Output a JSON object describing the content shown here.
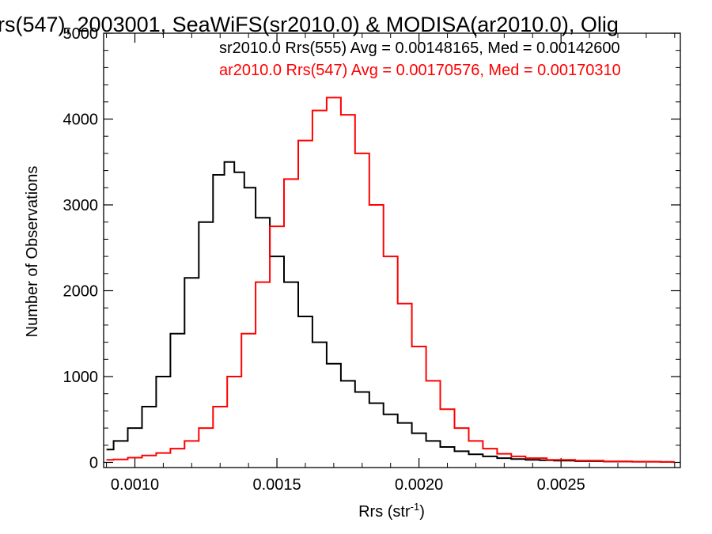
{
  "chart_data": {
    "type": "line",
    "title": "rs(547), 2003001, SeaWiFS(sr2010.0) & MODISA(ar2010.0), Olig",
    "xlabel": "Rrs (str",
    "xlabel_sup": "-1",
    "xlabel_close": ")",
    "ylabel": "Number of Observations",
    "xlim": [
      0.00089,
      0.00292
    ],
    "ylim": [
      -60,
      5000
    ],
    "xticks": [
      0.001,
      0.0015,
      0.002,
      0.0025
    ],
    "xtick_labels": [
      "0.0010",
      "0.0015",
      "0.0020",
      "0.0025"
    ],
    "yticks": [
      0,
      1000,
      2000,
      3000,
      4000,
      5000
    ],
    "ytick_labels": [
      "0",
      "1000",
      "2000",
      "3000",
      "4000",
      "5000"
    ],
    "legend": [
      {
        "text": "sr2010.0 Rrs(555) Avg = 0.00148165, Med = 0.00142600",
        "color": "#000000"
      },
      {
        "text": "ar2010.0 Rrs(547) Avg = 0.00170576, Med = 0.00170310",
        "color": "#ff0000"
      }
    ],
    "series": [
      {
        "color": "#000000",
        "points": [
          [
            0.0009,
            150
          ],
          [
            0.00095,
            250
          ],
          [
            0.001,
            400
          ],
          [
            0.00105,
            650
          ],
          [
            0.0011,
            1000
          ],
          [
            0.00115,
            1500
          ],
          [
            0.0012,
            2150
          ],
          [
            0.00125,
            2800
          ],
          [
            0.0013,
            3350
          ],
          [
            0.00133,
            3500
          ],
          [
            0.00137,
            3380
          ],
          [
            0.0014,
            3200
          ],
          [
            0.00145,
            2850
          ],
          [
            0.0015,
            2400
          ],
          [
            0.00155,
            2100
          ],
          [
            0.0016,
            1700
          ],
          [
            0.00165,
            1400
          ],
          [
            0.0017,
            1150
          ],
          [
            0.00175,
            950
          ],
          [
            0.0018,
            820
          ],
          [
            0.00185,
            690
          ],
          [
            0.0019,
            560
          ],
          [
            0.00195,
            460
          ],
          [
            0.002,
            340
          ],
          [
            0.00205,
            250
          ],
          [
            0.0021,
            180
          ],
          [
            0.00215,
            130
          ],
          [
            0.0022,
            95
          ],
          [
            0.00225,
            70
          ],
          [
            0.0023,
            50
          ],
          [
            0.00235,
            40
          ],
          [
            0.0024,
            30
          ],
          [
            0.00245,
            25
          ],
          [
            0.0025,
            20
          ],
          [
            0.0026,
            15
          ],
          [
            0.0027,
            10
          ],
          [
            0.0028,
            8
          ],
          [
            0.0029,
            5
          ]
        ]
      },
      {
        "color": "#ff0000",
        "points": [
          [
            0.0009,
            30
          ],
          [
            0.00095,
            35
          ],
          [
            0.001,
            55
          ],
          [
            0.00105,
            80
          ],
          [
            0.0011,
            110
          ],
          [
            0.00115,
            160
          ],
          [
            0.0012,
            250
          ],
          [
            0.00125,
            400
          ],
          [
            0.0013,
            650
          ],
          [
            0.00135,
            1000
          ],
          [
            0.0014,
            1500
          ],
          [
            0.00145,
            2100
          ],
          [
            0.0015,
            2750
          ],
          [
            0.00155,
            3300
          ],
          [
            0.0016,
            3750
          ],
          [
            0.00165,
            4100
          ],
          [
            0.0017,
            4250
          ],
          [
            0.00175,
            4050
          ],
          [
            0.0018,
            3600
          ],
          [
            0.00185,
            3000
          ],
          [
            0.0019,
            2400
          ],
          [
            0.00195,
            1850
          ],
          [
            0.002,
            1350
          ],
          [
            0.00205,
            950
          ],
          [
            0.0021,
            620
          ],
          [
            0.00215,
            400
          ],
          [
            0.0022,
            250
          ],
          [
            0.00225,
            160
          ],
          [
            0.0023,
            100
          ],
          [
            0.00235,
            70
          ],
          [
            0.0024,
            50
          ],
          [
            0.0025,
            30
          ],
          [
            0.0026,
            20
          ],
          [
            0.0027,
            12
          ],
          [
            0.0028,
            8
          ],
          [
            0.0029,
            5
          ]
        ]
      }
    ]
  }
}
